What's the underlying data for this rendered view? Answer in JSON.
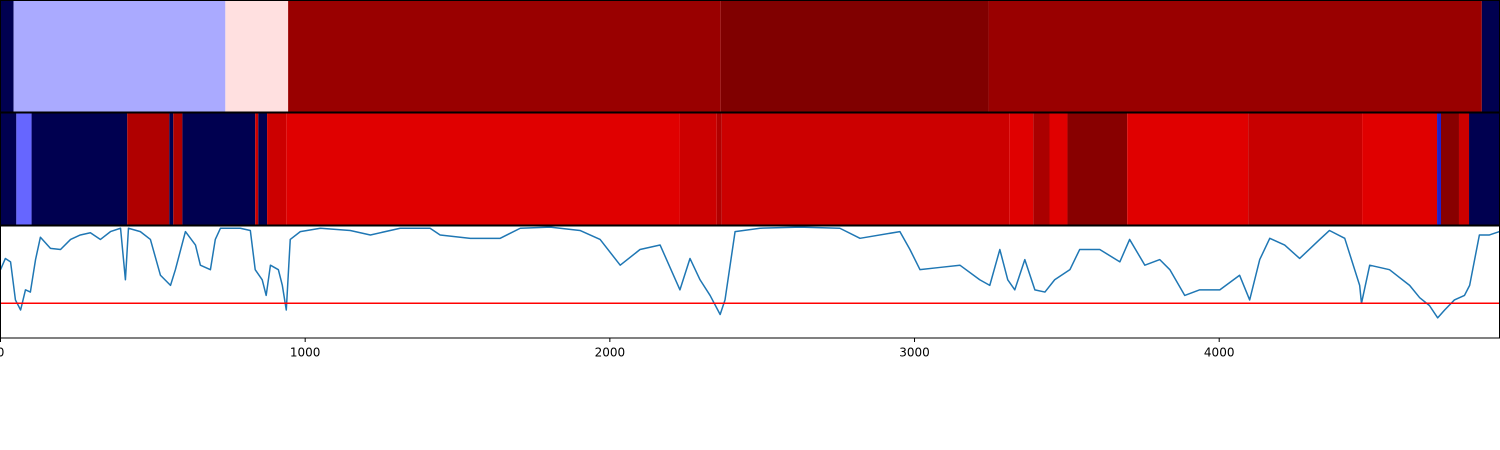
{
  "chart_data": [
    {
      "type": "segments",
      "xlim": [
        0,
        4920
      ],
      "segments": [
        {
          "start": 0,
          "end": 43,
          "color": "#000050"
        },
        {
          "start": 43,
          "end": 738,
          "color": "#aaaaff"
        },
        {
          "start": 738,
          "end": 944,
          "color": "#ffe0e0"
        },
        {
          "start": 944,
          "end": 2364,
          "color": "#990000"
        },
        {
          "start": 2364,
          "end": 3243,
          "color": "#800000"
        },
        {
          "start": 3243,
          "end": 4862,
          "color": "#990000"
        },
        {
          "start": 4862,
          "end": 4920,
          "color": "#000050"
        }
      ]
    },
    {
      "type": "segments",
      "xlim": [
        0,
        4920
      ],
      "segments": [
        {
          "start": 0,
          "end": 52,
          "color": "#000050"
        },
        {
          "start": 52,
          "end": 102,
          "color": "#6666ff"
        },
        {
          "start": 102,
          "end": 416,
          "color": "#000050"
        },
        {
          "start": 416,
          "end": 554,
          "color": "#b00000"
        },
        {
          "start": 554,
          "end": 567,
          "color": "#000050"
        },
        {
          "start": 567,
          "end": 597,
          "color": "#b00000"
        },
        {
          "start": 597,
          "end": 836,
          "color": "#000050"
        },
        {
          "start": 836,
          "end": 846,
          "color": "#cc0000"
        },
        {
          "start": 846,
          "end": 875,
          "color": "#000050"
        },
        {
          "start": 875,
          "end": 938,
          "color": "#cc0000"
        },
        {
          "start": 938,
          "end": 2230,
          "color": "#e00000"
        },
        {
          "start": 2230,
          "end": 2351,
          "color": "#cc0000"
        },
        {
          "start": 2351,
          "end": 2367,
          "color": "#b00000"
        },
        {
          "start": 2367,
          "end": 3311,
          "color": "#cc0000"
        },
        {
          "start": 3311,
          "end": 3390,
          "color": "#e00000"
        },
        {
          "start": 3390,
          "end": 3443,
          "color": "#aa0000"
        },
        {
          "start": 3443,
          "end": 3502,
          "color": "#e00000"
        },
        {
          "start": 3502,
          "end": 3698,
          "color": "#880000"
        },
        {
          "start": 3698,
          "end": 4095,
          "color": "#e00000"
        },
        {
          "start": 4095,
          "end": 4469,
          "color": "#c80000"
        },
        {
          "start": 4469,
          "end": 4715,
          "color": "#e00000"
        },
        {
          "start": 4715,
          "end": 4728,
          "color": "#2020cc"
        },
        {
          "start": 4728,
          "end": 4787,
          "color": "#880000"
        },
        {
          "start": 4787,
          "end": 4820,
          "color": "#cc0000"
        },
        {
          "start": 4820,
          "end": 4920,
          "color": "#000050"
        }
      ]
    },
    {
      "type": "line",
      "xlim": [
        0,
        4920
      ],
      "ylim": [
        0,
        1
      ],
      "xticks": [
        0,
        1000,
        2000,
        3000,
        4000
      ],
      "color": "#1f77b4",
      "threshold": 0.31,
      "threshold_color": "#ff0000",
      "x": [
        0,
        16,
        33,
        49,
        66,
        82,
        98,
        115,
        131,
        164,
        197,
        230,
        262,
        295,
        328,
        361,
        394,
        410,
        420,
        459,
        492,
        525,
        558,
        574,
        607,
        640,
        656,
        689,
        705,
        722,
        787,
        820,
        836,
        859,
        872,
        886,
        912,
        925,
        938,
        951,
        984,
        1050,
        1148,
        1214,
        1312,
        1410,
        1443,
        1542,
        1640,
        1706,
        1804,
        1902,
        1968,
        2034,
        2099,
        2165,
        2230,
        2263,
        2296,
        2329,
        2362,
        2378,
        2411,
        2493,
        2624,
        2755,
        2821,
        2952,
        2985,
        3018,
        3083,
        3149,
        3214,
        3247,
        3280,
        3306,
        3329,
        3362,
        3395,
        3428,
        3460,
        3510,
        3542,
        3608,
        3674,
        3706,
        3756,
        3805,
        3838,
        3887,
        3936,
        4002,
        4067,
        4100,
        4133,
        4166,
        4215,
        4264,
        4330,
        4362,
        4412,
        4461,
        4467,
        4494,
        4559,
        4625,
        4658,
        4690,
        4717,
        4740,
        4772,
        4805,
        4822,
        4854,
        4887,
        4920
      ],
      "values": [
        0.61,
        0.71,
        0.68,
        0.34,
        0.25,
        0.43,
        0.41,
        0.7,
        0.9,
        0.8,
        0.79,
        0.88,
        0.92,
        0.94,
        0.88,
        0.95,
        0.98,
        0.52,
        0.98,
        0.95,
        0.88,
        0.56,
        0.47,
        0.61,
        0.95,
        0.83,
        0.65,
        0.61,
        0.88,
        0.98,
        0.98,
        0.96,
        0.61,
        0.52,
        0.38,
        0.65,
        0.61,
        0.47,
        0.25,
        0.88,
        0.95,
        0.98,
        0.96,
        0.92,
        0.98,
        0.98,
        0.92,
        0.89,
        0.89,
        0.98,
        0.99,
        0.96,
        0.88,
        0.65,
        0.79,
        0.83,
        0.43,
        0.71,
        0.52,
        0.38,
        0.21,
        0.34,
        0.95,
        0.98,
        0.99,
        0.98,
        0.89,
        0.95,
        0.79,
        0.61,
        0.63,
        0.65,
        0.52,
        0.47,
        0.79,
        0.52,
        0.43,
        0.7,
        0.43,
        0.41,
        0.52,
        0.61,
        0.79,
        0.79,
        0.68,
        0.88,
        0.65,
        0.7,
        0.61,
        0.38,
        0.43,
        0.43,
        0.56,
        0.34,
        0.7,
        0.89,
        0.83,
        0.71,
        0.88,
        0.96,
        0.89,
        0.47,
        0.31,
        0.65,
        0.61,
        0.47,
        0.36,
        0.29,
        0.18,
        0.25,
        0.34,
        0.38,
        0.47,
        0.92,
        0.92,
        0.95
      ]
    }
  ]
}
